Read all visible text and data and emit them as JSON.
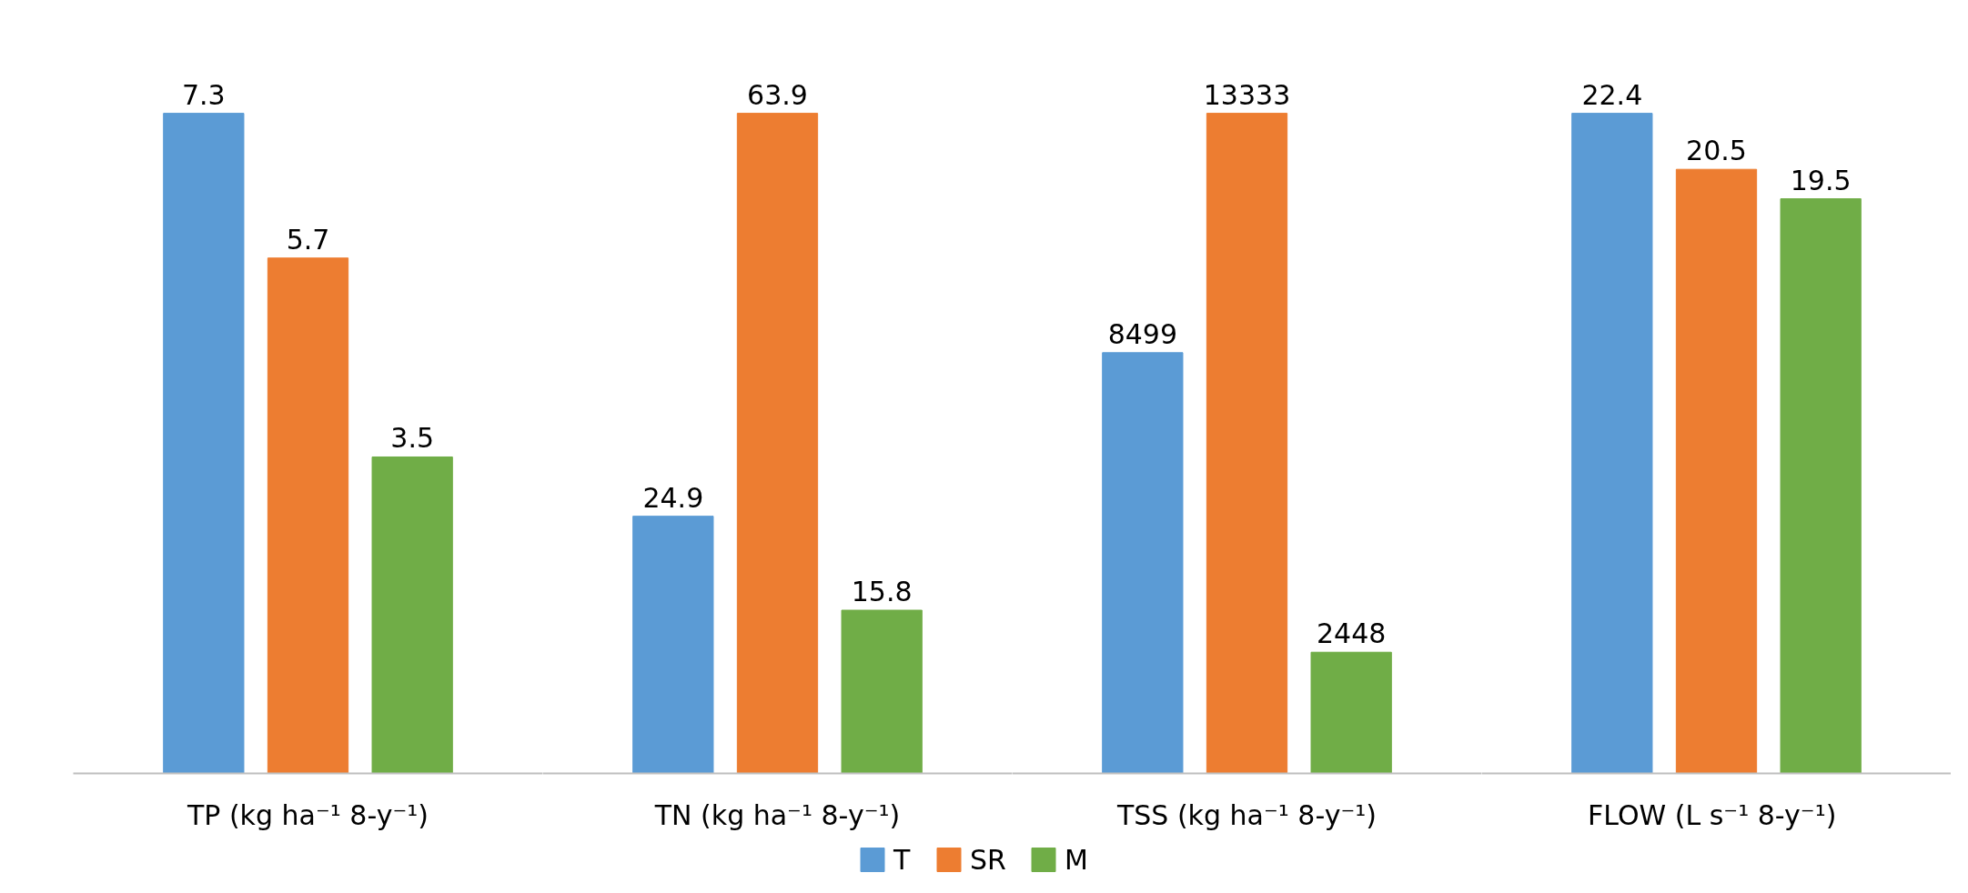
{
  "chart_data": [
    {
      "type": "bar",
      "stacked": true,
      "categories": [
        null,
        null,
        null
      ],
      "xlabel": "TP (kg ha⁻¹ 8-y⁻¹)",
      "data_labels": true,
      "legend": "bottom",
      "tick_labels": false,
      "series": [
        {
          "name": "T",
          "color": "#5b9bd5",
          "values": [
            7.3,
            null,
            null
          ]
        },
        {
          "name": "SR",
          "color": "#ed7d31",
          "values": [
            null,
            5.7,
            null
          ]
        },
        {
          "name": "M",
          "color": "#70ad47",
          "values": [
            null,
            null,
            3.5
          ]
        }
      ]
    },
    {
      "type": "bar",
      "stacked": true,
      "categories": [
        null,
        null,
        null
      ],
      "xlabel": "TN (kg ha⁻¹ 8-y⁻¹)",
      "data_labels": true,
      "tick_labels": false,
      "series": [
        {
          "color": "#5b9bd5",
          "values": [
            24.9,
            null,
            null
          ]
        },
        {
          "color": "#ed7d31",
          "values": [
            null,
            63.9,
            null
          ]
        },
        {
          "color": "#70ad47",
          "values": [
            null,
            null,
            15.8
          ]
        }
      ]
    },
    {
      "type": "bar",
      "stacked": true,
      "categories": [
        null,
        null,
        null
      ],
      "xlabel": "TSS (kg ha⁻¹ 8-y⁻¹)",
      "data_labels": true,
      "tick_labels": false,
      "series": [
        {
          "color": "#5b9bd5",
          "values": [
            8499,
            null,
            null
          ]
        },
        {
          "color": "#ed7d31",
          "values": [
            null,
            13333,
            null
          ]
        },
        {
          "color": "#70ad47",
          "values": [
            null,
            null,
            2448
          ]
        }
      ]
    },
    {
      "type": "bar",
      "stacked": true,
      "categories": [
        null,
        null,
        null
      ],
      "xlabel": "FLOW  (L s⁻¹ 8-y⁻¹)",
      "data_labels": true,
      "tick_labels": false,
      "series": [
        {
          "color": "#5b9bd5",
          "values": [
            22.4,
            null,
            null
          ]
        },
        {
          "color": "#ed7d31",
          "values": [
            null,
            20.5,
            null
          ]
        },
        {
          "color": "#70ad47",
          "values": [
            null,
            null,
            19.5
          ]
        }
      ]
    }
  ]
}
